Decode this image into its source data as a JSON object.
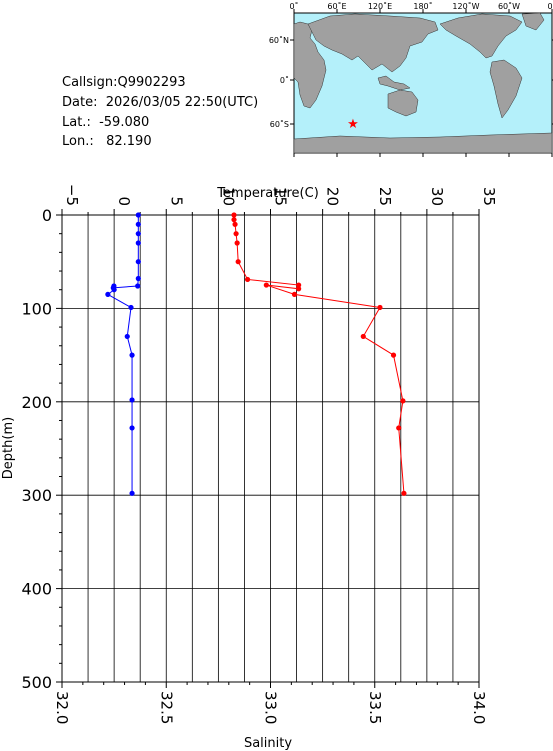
{
  "header": {
    "callsign": "Callsign:Q9902293",
    "date": "Date:  2026/03/05 22:50(UTC)",
    "lat": "Lat.:  -59.080",
    "lon": "Lon.:   82.190"
  },
  "map": {
    "top_ticks": [
      "0˚",
      "60˚E",
      "120˚E",
      "180˚",
      "120˚W",
      "60˚W",
      "0˚"
    ],
    "lat_ticks": [
      "60˚N",
      "0˚",
      "60˚S"
    ],
    "ocean_color": "#b4f0fa",
    "land_color": "#a0a0a0",
    "marker_color": "#ff0000",
    "marker_icon": "star"
  },
  "chart_data": {
    "type": "line",
    "title": "",
    "ylabel": "Depth(m)",
    "y_ticks": [
      "0",
      "100",
      "200",
      "300",
      "400",
      "500"
    ],
    "ylim": [
      0,
      500
    ],
    "y_inverted": true,
    "grid": true,
    "top_axis": {
      "label": "Temperature(C)",
      "range": [
        -5,
        35
      ],
      "ticks": [
        "−5",
        "0",
        "5",
        "10",
        "15",
        "20",
        "25",
        "30",
        "35"
      ]
    },
    "bottom_axis": {
      "label": "Salinity",
      "range": [
        32.0,
        34.0
      ],
      "ticks": [
        "32.0",
        "32.5",
        "33.0",
        "33.5",
        "34.0"
      ]
    },
    "series": [
      {
        "color": "#0000ff",
        "axis": "bottom",
        "points": [
          [
            32.366,
            0
          ],
          [
            32.366,
            10
          ],
          [
            32.366,
            20
          ],
          [
            32.366,
            30
          ],
          [
            32.366,
            50
          ],
          [
            32.366,
            68
          ],
          [
            32.363,
            76
          ],
          [
            32.246,
            78
          ],
          [
            32.249,
            76
          ],
          [
            32.25,
            80
          ],
          [
            32.22,
            85
          ],
          [
            32.331,
            99
          ],
          [
            32.313,
            130
          ],
          [
            32.336,
            150
          ],
          [
            32.336,
            198
          ],
          [
            32.336,
            228
          ],
          [
            32.336,
            298
          ]
        ]
      },
      {
        "color": "#ff0000",
        "axis": "top",
        "points": [
          [
            11.5,
            0
          ],
          [
            11.5,
            5
          ],
          [
            11.6,
            10
          ],
          [
            11.7,
            20
          ],
          [
            11.8,
            30
          ],
          [
            11.9,
            50
          ],
          [
            12.8,
            69
          ],
          [
            17.7,
            75
          ],
          [
            17.7,
            79
          ],
          [
            14.6,
            75
          ],
          [
            17.3,
            85
          ],
          [
            25.5,
            99
          ],
          [
            23.9,
            130
          ],
          [
            26.8,
            150
          ],
          [
            27.7,
            199
          ],
          [
            27.3,
            228
          ],
          [
            27.8,
            298
          ]
        ]
      }
    ]
  }
}
